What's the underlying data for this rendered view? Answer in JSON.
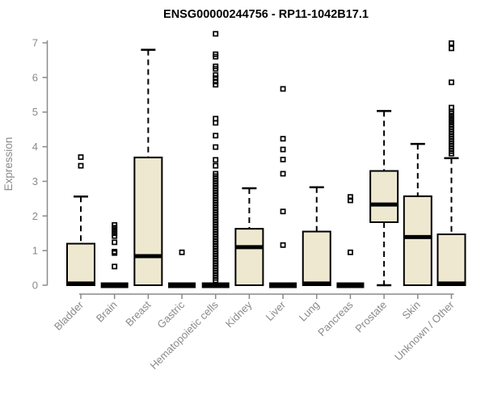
{
  "chart_data": {
    "type": "boxplot",
    "title": "ENSG00000244756 - RP11-1042B17.1",
    "ylabel": "Expression",
    "xlabel": "",
    "ylim": [
      0,
      7.3
    ],
    "yticks": [
      0,
      1,
      2,
      3,
      4,
      5,
      6,
      7
    ],
    "grid": false,
    "legend": "none",
    "box_fill": "#EDE8CF",
    "box_stroke": "#000000",
    "axis_color": "#8A8A8A",
    "label_color": "#8A8A8A",
    "title_color": "#000000",
    "background": "#FFFFFF",
    "categories": [
      "Bladder",
      "Brain",
      "Breast",
      "Gastric",
      "Hematopoietic cells",
      "Kidney",
      "Liver",
      "Lung",
      "Pancreas",
      "Prostate",
      "Skin",
      "Unknown / Other"
    ],
    "series": [
      {
        "name": "Bladder",
        "low": 0,
        "q1": 0,
        "median": 0.05,
        "q3": 1.2,
        "high": 2.56,
        "outliers": [
          3.45,
          3.7
        ]
      },
      {
        "name": "Brain",
        "low": 0,
        "q1": 0,
        "median": 0,
        "q3": 0,
        "high": 0,
        "outliers": [
          0.54,
          0.93,
          0.97,
          1.24,
          1.42,
          1.5,
          1.58,
          1.66,
          1.74
        ]
      },
      {
        "name": "Breast",
        "low": 0,
        "q1": 0,
        "median": 0.84,
        "q3": 3.69,
        "high": 6.8,
        "outliers": []
      },
      {
        "name": "Gastric",
        "low": 0,
        "q1": 0,
        "median": 0,
        "q3": 0,
        "high": 0,
        "outliers": [
          0.95
        ]
      },
      {
        "name": "Hematopoietic cells",
        "low": 0,
        "q1": 0,
        "median": 0,
        "q3": 0,
        "high": 0,
        "outliers": [
          0.14,
          0.21,
          0.28,
          0.35,
          0.42,
          0.49,
          0.56,
          0.63,
          0.7,
          0.77,
          0.84,
          0.91,
          0.98,
          1.05,
          1.12,
          1.19,
          1.26,
          1.33,
          1.4,
          1.47,
          1.54,
          1.61,
          1.68,
          1.75,
          1.82,
          1.89,
          1.96,
          2.03,
          2.1,
          2.17,
          2.24,
          2.31,
          2.38,
          2.45,
          2.52,
          2.59,
          2.66,
          2.73,
          2.8,
          2.87,
          2.94,
          3.01,
          3.08,
          3.15,
          3.22,
          3.45,
          3.62,
          3.99,
          4.32,
          4.69,
          4.81,
          5.79,
          5.88,
          5.98,
          6.07,
          6.25,
          6.32,
          6.6,
          6.67,
          7.26
        ]
      },
      {
        "name": "Kidney",
        "low": 0,
        "q1": 0,
        "median": 1.1,
        "q3": 1.63,
        "high": 2.8,
        "outliers": []
      },
      {
        "name": "Liver",
        "low": 0,
        "q1": 0,
        "median": 0,
        "q3": 0,
        "high": 0,
        "outliers": [
          1.16,
          2.13,
          3.22,
          3.63,
          3.92,
          4.23,
          5.67
        ]
      },
      {
        "name": "Lung",
        "low": 0,
        "q1": 0,
        "median": 0.05,
        "q3": 1.55,
        "high": 2.83,
        "outliers": []
      },
      {
        "name": "Pancreas",
        "low": 0,
        "q1": 0,
        "median": 0,
        "q3": 0,
        "high": 0,
        "outliers": [
          0.95,
          2.45,
          2.55
        ]
      },
      {
        "name": "Prostate",
        "low": 0,
        "q1": 1.82,
        "median": 2.33,
        "q3": 3.3,
        "high": 5.03,
        "outliers": []
      },
      {
        "name": "Skin",
        "low": 0,
        "q1": 0,
        "median": 1.39,
        "q3": 2.57,
        "high": 4.08,
        "outliers": []
      },
      {
        "name": "Unknown / Other",
        "low": 0,
        "q1": 0,
        "median": 0.05,
        "q3": 1.47,
        "high": 3.67,
        "outliers": [
          3.8,
          3.87,
          3.94,
          4.01,
          4.08,
          4.15,
          4.22,
          4.29,
          4.36,
          4.43,
          4.5,
          4.57,
          4.64,
          4.72,
          4.8,
          4.88,
          4.96,
          5.02,
          5.13,
          5.86,
          6.84,
          6.99
        ]
      }
    ]
  }
}
